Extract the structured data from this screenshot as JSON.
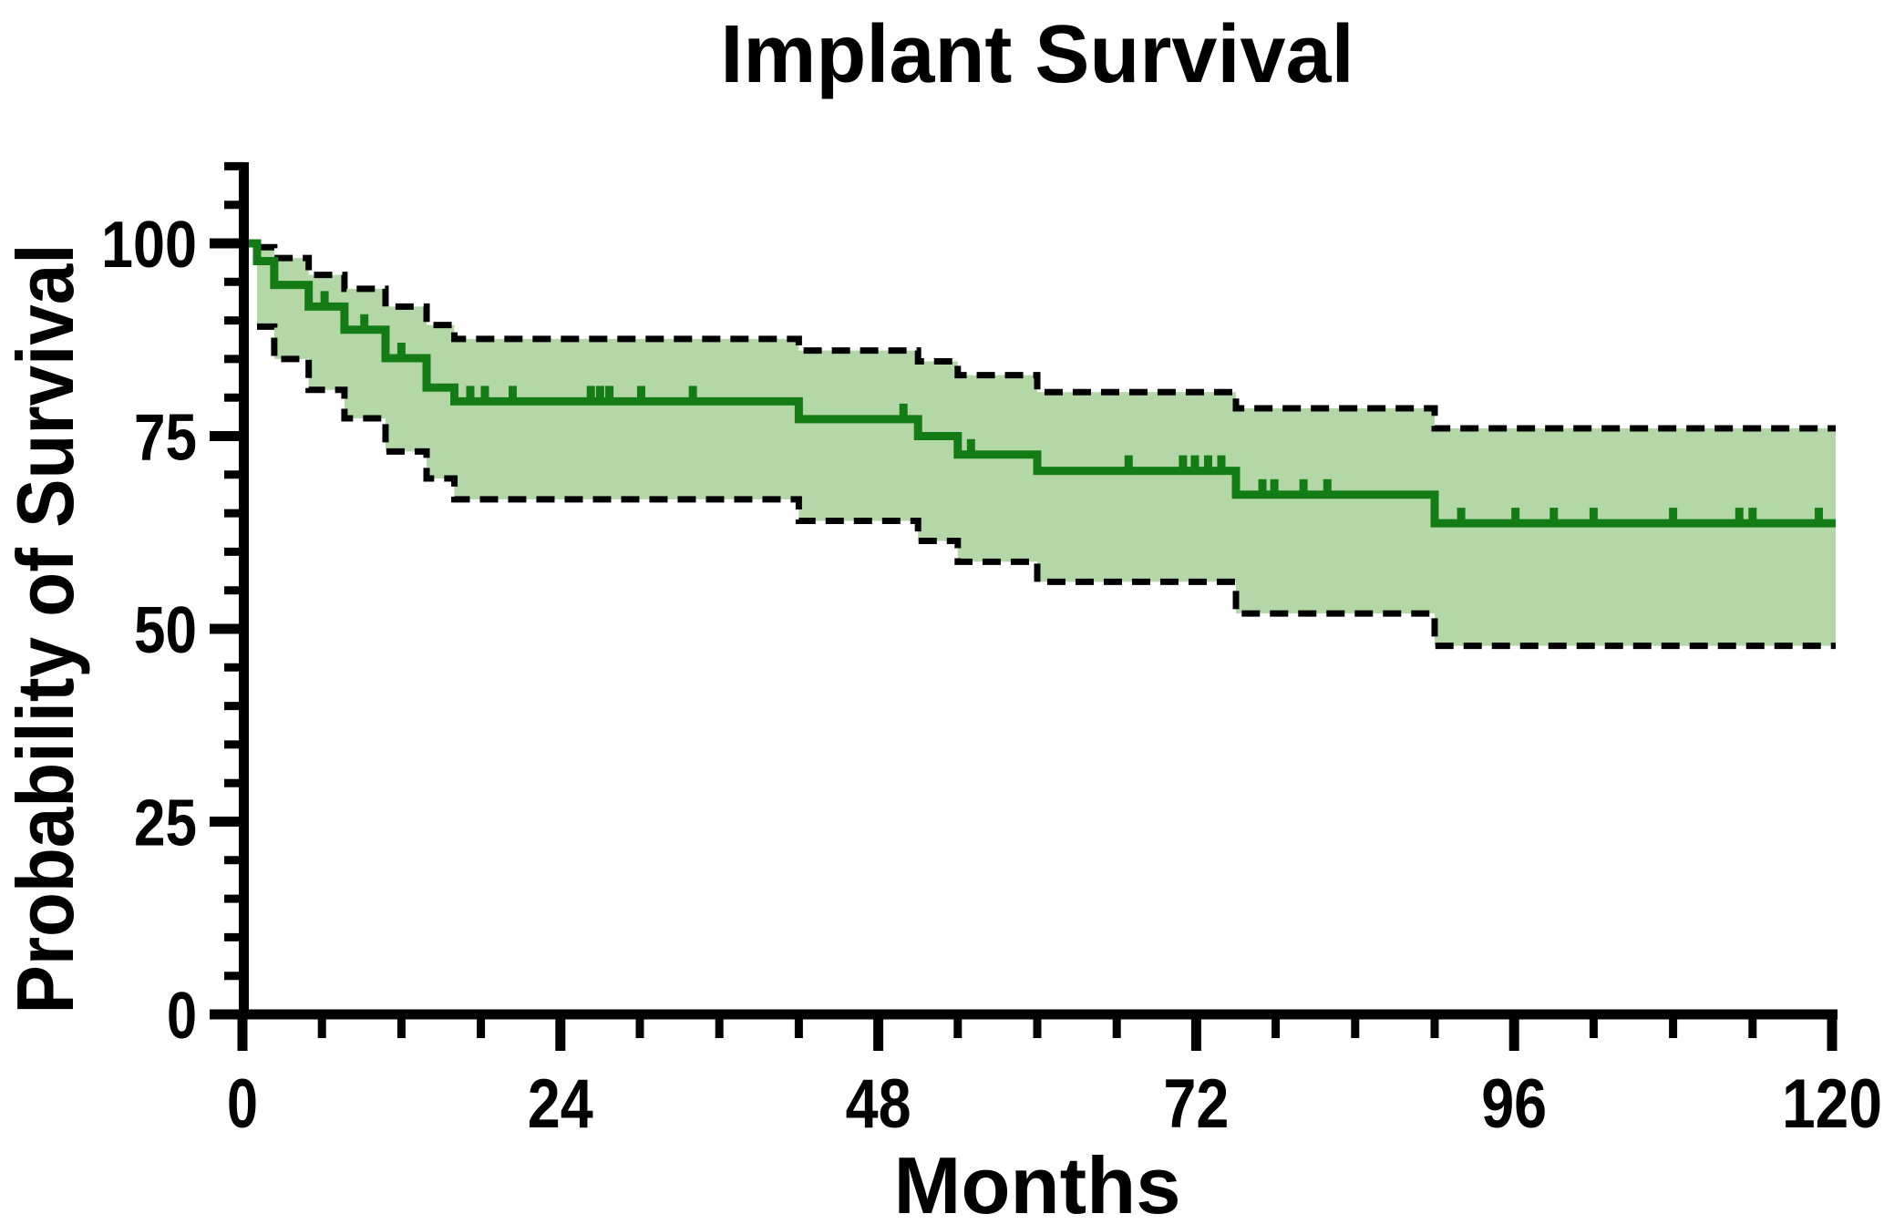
{
  "figure": {
    "title": "Implant Survival",
    "x_axis_label": "Months",
    "y_axis_label": "Probability of Survival"
  },
  "chart_data": {
    "type": "line",
    "subtype": "kaplan-meier-step-curve-with-confidence-band",
    "title": "Implant Survival",
    "xlabel": "Months",
    "ylabel": "Probability of Survival",
    "xlim": [
      0,
      120
    ],
    "ylim": [
      0,
      110
    ],
    "x_ticks": [
      0,
      24,
      48,
      72,
      96,
      120
    ],
    "x_minor_tick_every": 6,
    "y_ticks": [
      0,
      25,
      50,
      75,
      100
    ],
    "y_minor_tick_every": 5,
    "grid": false,
    "legend_position": "none",
    "x_end": 120,
    "series": [
      {
        "name": "survival-estimate",
        "style": "solid-step",
        "color": "#147c14",
        "points": [
          [
            0,
            100
          ],
          [
            1.1,
            97.7
          ],
          [
            2.4,
            94.6
          ],
          [
            5,
            91.8
          ],
          [
            7.7,
            88.8
          ],
          [
            10.8,
            85.1
          ],
          [
            13.9,
            81.3
          ],
          [
            16,
            79.5
          ],
          [
            42,
            77.2
          ],
          [
            51,
            75.0
          ],
          [
            54,
            72.6
          ],
          [
            60,
            70.5
          ],
          [
            75,
            67.4
          ],
          [
            90,
            63.7
          ]
        ]
      },
      {
        "name": "ci-upper-95",
        "style": "dashed-step",
        "color": "#000000",
        "points": [
          [
            1.1,
            99.5
          ],
          [
            2.4,
            98.1
          ],
          [
            5,
            95.9
          ],
          [
            7.7,
            94.1
          ],
          [
            10.8,
            91.8
          ],
          [
            13.9,
            89.4
          ],
          [
            16,
            87.6
          ],
          [
            42,
            86.1
          ],
          [
            51,
            84.7
          ],
          [
            54,
            82.9
          ],
          [
            60,
            80.7
          ],
          [
            75,
            78.6
          ],
          [
            90,
            76.0
          ]
        ]
      },
      {
        "name": "ci-lower-95",
        "style": "dashed-step",
        "color": "#000000",
        "points": [
          [
            1.1,
            89.2
          ],
          [
            2.4,
            85.0
          ],
          [
            5,
            81.0
          ],
          [
            7.7,
            77.3
          ],
          [
            10.8,
            73.0
          ],
          [
            13.9,
            69.5
          ],
          [
            16,
            66.8
          ],
          [
            42,
            64.0
          ],
          [
            51,
            61.4
          ],
          [
            54,
            58.7
          ],
          [
            60,
            56.1
          ],
          [
            75,
            52.0
          ],
          [
            90,
            47.8
          ]
        ]
      }
    ],
    "censor_marks_months": [
      6.2,
      9.2,
      12.0,
      17.2,
      18.3,
      20.4,
      26.3,
      27.0,
      27.7,
      30.1,
      34.0,
      49.9,
      55.0,
      66.9,
      71.0,
      71.9,
      72.9,
      73.9,
      77.0,
      77.9,
      80.1,
      81.9,
      92.0,
      96.1,
      99.0,
      102.0,
      108.0,
      113.0,
      114.0,
      119.0
    ],
    "band_fill_color": "#b3d7a7",
    "curve_color": "#147c14",
    "ci_line_color": "#000000",
    "axis_color": "#000000"
  }
}
